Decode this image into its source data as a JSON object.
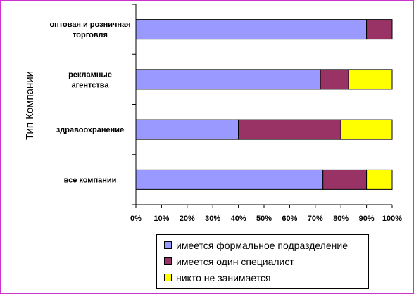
{
  "chart_data": {
    "type": "bar",
    "orientation": "horizontal",
    "stacked": "percent",
    "ylabel": "Тип Компании",
    "xlim": [
      0,
      100
    ],
    "x_ticks": [
      "0%",
      "10%",
      "20%",
      "30%",
      "40%",
      "50%",
      "60%",
      "70%",
      "80%",
      "90%",
      "100%"
    ],
    "categories": [
      [
        "оптовая и розничная",
        "торговля"
      ],
      [
        "рекламные",
        "агентства"
      ],
      [
        "здравоохранение"
      ],
      [
        "все компании"
      ]
    ],
    "series": [
      {
        "name": "имеется формальное подразделение",
        "color": "#9999ff",
        "values": [
          90,
          72,
          40,
          73
        ]
      },
      {
        "name": "имеется один специалист",
        "color": "#993366",
        "values": [
          10,
          11,
          40,
          17
        ]
      },
      {
        "name": "никто не занимается",
        "color": "#ffff00",
        "values": [
          0,
          17,
          20,
          10
        ]
      }
    ],
    "grid": {
      "x": false,
      "y": false
    },
    "legend_position": "bottom"
  }
}
